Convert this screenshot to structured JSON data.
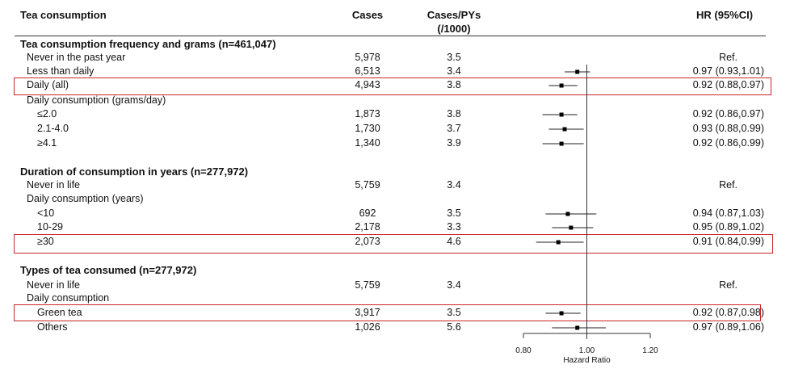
{
  "headers": {
    "label": "Tea consumption",
    "cases": "Cases",
    "pys_line1": "Cases/PYs",
    "pys_line2": "(/1000)",
    "hr": "HR (95%CI)"
  },
  "sections": [
    {
      "title": "Tea consumption frequency and grams (n=461,047)"
    },
    {
      "title": "Duration of consumption in years (n=277,972)"
    },
    {
      "title": "Types of tea consumed (n=277,972)"
    }
  ],
  "rows": [
    {
      "label": "Never in the past year",
      "cases": "5,978",
      "rate": "3.5",
      "hr_text": "Ref."
    },
    {
      "label": "Less than daily",
      "cases": "6,513",
      "rate": "3.4",
      "hr_text": "0.97 (0.93,1.01)",
      "highlight": false
    },
    {
      "label": "Daily (all)",
      "cases": "4,943",
      "rate": "3.8",
      "hr_text": "0.92 (0.88,0.97)",
      "highlight": true
    },
    {
      "label": "Daily consumption (grams/day)"
    },
    {
      "label": "≤2.0",
      "cases": "1,873",
      "rate": "3.8",
      "hr_text": "0.92 (0.86,0.97)"
    },
    {
      "label": "2.1-4.0",
      "cases": "1,730",
      "rate": "3.7",
      "hr_text": "0.93 (0.88,0.99)"
    },
    {
      "label": "≥4.1",
      "cases": "1,340",
      "rate": "3.9",
      "hr_text": "0.92 (0.86,0.99)"
    },
    {
      "label": "Never in life",
      "cases": "5,759",
      "rate": "3.4",
      "hr_text": "Ref."
    },
    {
      "label": "Daily consumption (years)"
    },
    {
      "label": "<10",
      "cases": "692",
      "rate": "3.5",
      "hr_text": "0.94 (0.87,1.03)"
    },
    {
      "label": "10-29",
      "cases": "2,178",
      "rate": "3.3",
      "hr_text": "0.95 (0.89,1.02)"
    },
    {
      "label": "≥30",
      "cases": "2,073",
      "rate": "4.6",
      "hr_text": "0.91 (0.84,0.99)",
      "highlight": true
    },
    {
      "label": "Never in life",
      "cases": "5,759",
      "rate": "3.4",
      "hr_text": "Ref."
    },
    {
      "label": "Daily consumption"
    },
    {
      "label": "Green tea",
      "cases": "3,917",
      "rate": "3.5",
      "hr_text": "0.92 (0.87,0.98)",
      "highlight": true
    },
    {
      "label": "Others",
      "cases": "1,026",
      "rate": "5.6",
      "hr_text": "0.97 (0.89,1.06)"
    }
  ],
  "chart_data": {
    "type": "forest",
    "title": "",
    "xlabel": "Hazard Ratio",
    "x_ticks": [
      "0.80",
      "1.00",
      "1.20"
    ],
    "xlim": [
      0.8,
      1.2
    ],
    "reference_line": 1.0,
    "points": [
      {
        "label": "Less than daily",
        "hr": 0.97,
        "lo": 0.93,
        "hi": 1.01
      },
      {
        "label": "Daily (all)",
        "hr": 0.92,
        "lo": 0.88,
        "hi": 0.97
      },
      {
        "label": "≤2.0",
        "hr": 0.92,
        "lo": 0.86,
        "hi": 0.97
      },
      {
        "label": "2.1-4.0",
        "hr": 0.93,
        "lo": 0.88,
        "hi": 0.99
      },
      {
        "label": "≥4.1",
        "hr": 0.92,
        "lo": 0.86,
        "hi": 0.99
      },
      {
        "label": "<10",
        "hr": 0.94,
        "lo": 0.87,
        "hi": 1.03
      },
      {
        "label": "10-29",
        "hr": 0.95,
        "lo": 0.89,
        "hi": 1.02
      },
      {
        "label": "≥30",
        "hr": 0.91,
        "lo": 0.84,
        "hi": 0.99
      },
      {
        "label": "Green tea",
        "hr": 0.92,
        "lo": 0.87,
        "hi": 0.98
      },
      {
        "label": "Others",
        "hr": 0.97,
        "lo": 0.89,
        "hi": 1.06
      }
    ]
  },
  "colors": {
    "highlight": "#c8262c",
    "ink": "#111111"
  }
}
